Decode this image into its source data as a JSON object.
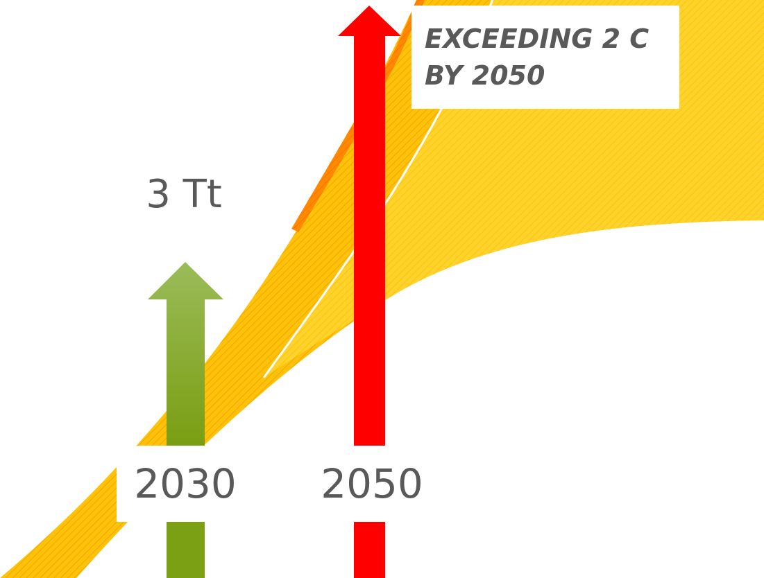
{
  "labels": {
    "year_2030": "2030",
    "year_2050": "2050",
    "amount": "3 Tt"
  },
  "callout": {
    "line1": "EXCEEDING 2 C",
    "line2": "BY 2050"
  },
  "colors": {
    "band_yellow": "#ffc000",
    "band_light_yellow": "#ffd54a",
    "band_orange": "#ff7b00",
    "arrow_green": "#84a51c",
    "arrow_green_light": "#9bbb59",
    "arrow_red": "#ff0000",
    "text_gray": "#595959"
  }
}
